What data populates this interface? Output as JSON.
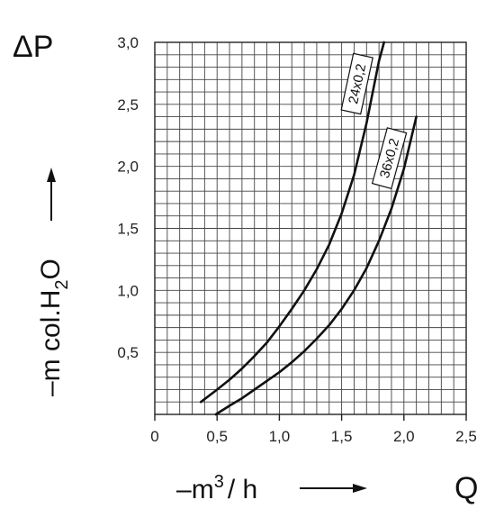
{
  "chart_data": {
    "type": "line",
    "x_symbol": "Q",
    "y_symbol": "ΔP",
    "x_unit_prefix": "–",
    "x_unit_main": "m",
    "x_unit_sup": "3",
    "x_unit_tail": "/ h",
    "y_unit_prefix": "–m col.H",
    "y_unit_sub": "2",
    "y_unit_tail": "O",
    "xlim": [
      0,
      2.5
    ],
    "ylim": [
      0,
      3.0
    ],
    "x_ticks": [
      0,
      0.5,
      1.0,
      1.5,
      2.0,
      2.5
    ],
    "x_tick_labels": [
      "0",
      "0,5",
      "1,0",
      "1,5",
      "2,0",
      "2,5"
    ],
    "y_ticks": [
      0.5,
      1.0,
      1.5,
      2.0,
      2.5,
      3.0
    ],
    "y_tick_labels": [
      "0,5",
      "1,0",
      "1,5",
      "2,0",
      "2,5",
      "3,0"
    ],
    "grid": true,
    "series": [
      {
        "name": "24x0,2",
        "x": [
          0.37,
          0.5,
          0.6,
          0.7,
          0.8,
          0.9,
          1.0,
          1.1,
          1.2,
          1.3,
          1.4,
          1.5,
          1.6,
          1.7,
          1.8,
          1.84
        ],
        "y": [
          0.1,
          0.2,
          0.28,
          0.37,
          0.47,
          0.58,
          0.71,
          0.85,
          1.0,
          1.17,
          1.37,
          1.62,
          1.93,
          2.35,
          2.85,
          3.0
        ]
      },
      {
        "name": "36x0,2",
        "x": [
          0.49,
          0.6,
          0.7,
          0.8,
          0.9,
          1.0,
          1.1,
          1.2,
          1.3,
          1.4,
          1.5,
          1.6,
          1.7,
          1.8,
          1.9,
          2.0,
          2.1
        ],
        "y": [
          0.0,
          0.07,
          0.13,
          0.2,
          0.27,
          0.34,
          0.42,
          0.51,
          0.61,
          0.72,
          0.85,
          1.0,
          1.18,
          1.4,
          1.66,
          1.98,
          2.4
        ]
      }
    ]
  }
}
